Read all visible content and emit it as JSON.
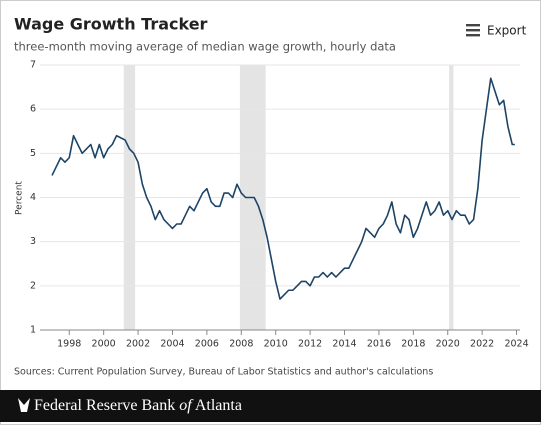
{
  "chart_data": {
    "type": "line",
    "title": "Wage Growth Tracker",
    "subtitle": "three-month moving average of median wage growth, hourly data",
    "export_label": "Export",
    "y_label": "Percent",
    "source": "Sources: Current Population Survey, Bureau of Labor Statistics and author's calculations",
    "footer": {
      "name_start": "Federal Reserve Bank",
      "name_of": "of",
      "name_end": "Atlanta"
    },
    "xlim": [
      1996.3,
      2024.2
    ],
    "xticks": [
      1998,
      2000,
      2002,
      2004,
      2006,
      2008,
      2010,
      2012,
      2014,
      2016,
      2018,
      2020,
      2022,
      2024
    ],
    "ylim": [
      1,
      7
    ],
    "yticks": [
      1,
      2,
      3,
      4,
      5,
      6,
      7
    ],
    "grid": true,
    "recession_color": "#e4e4e4",
    "recessions": [
      [
        2001.17,
        2001.83
      ],
      [
        2007.92,
        2009.42
      ],
      [
        2020.08,
        2020.33
      ]
    ],
    "series": [
      {
        "name": "Wage growth",
        "color": "#1d4466",
        "x": [
          1997.0,
          1997.25,
          1997.5,
          1997.75,
          1998.0,
          1998.25,
          1998.5,
          1998.75,
          1999.0,
          1999.25,
          1999.5,
          1999.75,
          2000.0,
          2000.25,
          2000.5,
          2000.75,
          2001.0,
          2001.25,
          2001.5,
          2001.75,
          2002.0,
          2002.25,
          2002.5,
          2002.75,
          2003.0,
          2003.25,
          2003.5,
          2003.75,
          2004.0,
          2004.25,
          2004.5,
          2004.75,
          2005.0,
          2005.25,
          2005.5,
          2005.75,
          2006.0,
          2006.25,
          2006.5,
          2006.75,
          2007.0,
          2007.25,
          2007.5,
          2007.75,
          2008.0,
          2008.25,
          2008.5,
          2008.75,
          2009.0,
          2009.25,
          2009.5,
          2009.75,
          2010.0,
          2010.25,
          2010.5,
          2010.75,
          2011.0,
          2011.25,
          2011.5,
          2011.75,
          2012.0,
          2012.25,
          2012.5,
          2012.75,
          2013.0,
          2013.25,
          2013.5,
          2013.75,
          2014.0,
          2014.25,
          2014.5,
          2014.75,
          2015.0,
          2015.25,
          2015.5,
          2015.75,
          2016.0,
          2016.25,
          2016.5,
          2016.75,
          2017.0,
          2017.25,
          2017.5,
          2017.75,
          2018.0,
          2018.25,
          2018.5,
          2018.75,
          2019.0,
          2019.25,
          2019.5,
          2019.75,
          2020.0,
          2020.25,
          2020.5,
          2020.75,
          2021.0,
          2021.25,
          2021.5,
          2021.75,
          2022.0,
          2022.25,
          2022.5,
          2022.75,
          2023.0,
          2023.25,
          2023.5,
          2023.75,
          2023.9
        ],
        "values": [
          4.5,
          4.7,
          4.9,
          4.8,
          4.9,
          5.4,
          5.2,
          5.0,
          5.1,
          5.2,
          4.9,
          5.2,
          4.9,
          5.1,
          5.2,
          5.4,
          5.35,
          5.3,
          5.1,
          5.0,
          4.8,
          4.3,
          4.0,
          3.8,
          3.5,
          3.7,
          3.5,
          3.4,
          3.3,
          3.4,
          3.4,
          3.6,
          3.8,
          3.7,
          3.9,
          4.1,
          4.2,
          3.9,
          3.8,
          3.8,
          4.1,
          4.1,
          4.0,
          4.3,
          4.1,
          4.0,
          4.0,
          4.0,
          3.8,
          3.5,
          3.1,
          2.6,
          2.1,
          1.7,
          1.8,
          1.9,
          1.9,
          2.0,
          2.1,
          2.1,
          2.0,
          2.2,
          2.2,
          2.3,
          2.2,
          2.3,
          2.2,
          2.3,
          2.4,
          2.4,
          2.6,
          2.8,
          3.0,
          3.3,
          3.2,
          3.1,
          3.3,
          3.4,
          3.6,
          3.9,
          3.4,
          3.2,
          3.6,
          3.5,
          3.1,
          3.3,
          3.6,
          3.9,
          3.6,
          3.7,
          3.9,
          3.6,
          3.7,
          3.5,
          3.7,
          3.6,
          3.6,
          3.4,
          3.5,
          4.2,
          5.3,
          6.0,
          6.7,
          6.4,
          6.1,
          6.2,
          5.6,
          5.2,
          5.2
        ]
      }
    ]
  }
}
